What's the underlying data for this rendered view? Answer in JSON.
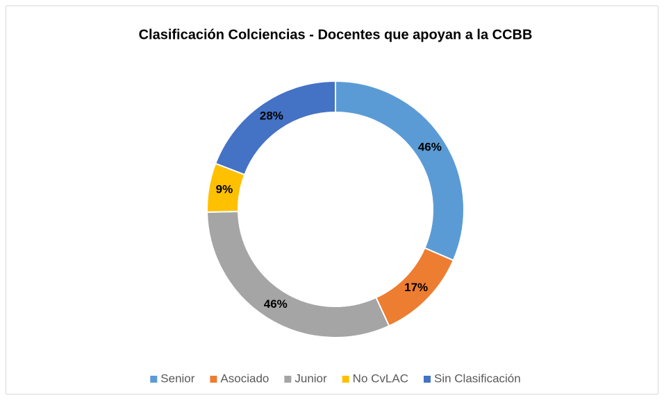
{
  "chart_data": {
    "type": "donut",
    "title": "Clasificación Colciencias - Docentes que apoyan a la CCBB",
    "categories": [
      "Senior",
      "Asociado",
      "Junior",
      "No CvLAC",
      "Sin Clasificación"
    ],
    "values": [
      46,
      17,
      46,
      9,
      28
    ],
    "value_labels": [
      "46%",
      "17%",
      "46%",
      "9%",
      "28%"
    ],
    "colors": [
      "#5b9bd5",
      "#ed7d31",
      "#a5a5a5",
      "#ffc000",
      "#4472c4"
    ],
    "legend": "bottom"
  }
}
